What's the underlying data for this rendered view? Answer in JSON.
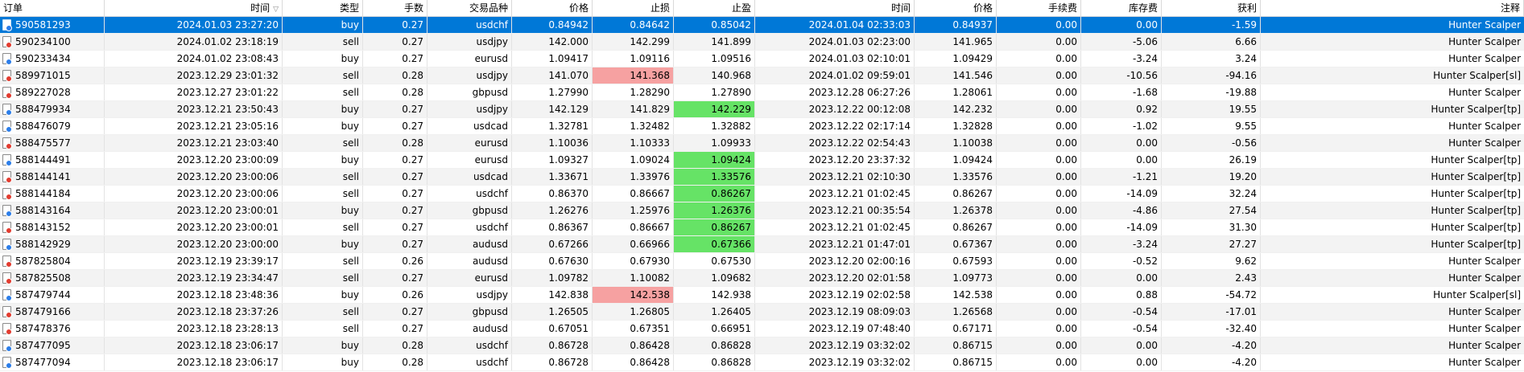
{
  "colors": {
    "selected_row": "#0078d7",
    "hit_tp": "#66e366",
    "hit_sl": "#f6a1a1",
    "buy_dot": "#2b7de9",
    "sell_dot": "#e23b2f"
  },
  "icons": {
    "order": "order-document-icon",
    "sort": "sort-desc-triangle-icon"
  },
  "table": {
    "sort_arrow": "▽",
    "columns": [
      "订单",
      "时间",
      "类型",
      "手数",
      "交易品种",
      "价格",
      "止损",
      "止盈",
      "时间",
      "价格",
      "手续费",
      "库存费",
      "获利",
      "注释"
    ],
    "rows": [
      {
        "order": "590581293",
        "open_time": "2024.01.03 23:27:20",
        "type": "buy",
        "lots": "0.27",
        "symbol": "usdchf",
        "price": "0.84942",
        "sl": "0.84642",
        "tp": "0.85042",
        "close_time": "2024.01.04 02:33:03",
        "close_price": "0.84937",
        "commission": "0.00",
        "swap": "0.00",
        "profit": "-1.59",
        "comment": "Hunter Scalper",
        "hl": "",
        "selected": true
      },
      {
        "order": "590234100",
        "open_time": "2024.01.02 23:18:19",
        "type": "sell",
        "lots": "0.27",
        "symbol": "usdjpy",
        "price": "142.000",
        "sl": "142.299",
        "tp": "141.899",
        "close_time": "2024.01.03 02:23:00",
        "close_price": "141.965",
        "commission": "0.00",
        "swap": "-5.06",
        "profit": "6.66",
        "comment": "Hunter Scalper",
        "hl": "",
        "selected": false
      },
      {
        "order": "590233434",
        "open_time": "2024.01.02 23:08:43",
        "type": "buy",
        "lots": "0.27",
        "symbol": "eurusd",
        "price": "1.09417",
        "sl": "1.09116",
        "tp": "1.09516",
        "close_time": "2024.01.03 02:10:01",
        "close_price": "1.09429",
        "commission": "0.00",
        "swap": "-3.24",
        "profit": "3.24",
        "comment": "Hunter Scalper",
        "hl": "",
        "selected": false
      },
      {
        "order": "589971015",
        "open_time": "2023.12.29 23:01:32",
        "type": "sell",
        "lots": "0.28",
        "symbol": "usdjpy",
        "price": "141.070",
        "sl": "141.368",
        "tp": "140.968",
        "close_time": "2024.01.02 09:59:01",
        "close_price": "141.546",
        "commission": "0.00",
        "swap": "-10.56",
        "profit": "-94.16",
        "comment": "Hunter Scalper[sl]",
        "hl": "sl",
        "selected": false
      },
      {
        "order": "589227028",
        "open_time": "2023.12.27 23:01:22",
        "type": "sell",
        "lots": "0.28",
        "symbol": "gbpusd",
        "price": "1.27990",
        "sl": "1.28290",
        "tp": "1.27890",
        "close_time": "2023.12.28 06:27:26",
        "close_price": "1.28061",
        "commission": "0.00",
        "swap": "-1.68",
        "profit": "-19.88",
        "comment": "Hunter Scalper",
        "hl": "",
        "selected": false
      },
      {
        "order": "588479934",
        "open_time": "2023.12.21 23:50:43",
        "type": "buy",
        "lots": "0.27",
        "symbol": "usdjpy",
        "price": "142.129",
        "sl": "141.829",
        "tp": "142.229",
        "close_time": "2023.12.22 00:12:08",
        "close_price": "142.232",
        "commission": "0.00",
        "swap": "0.92",
        "profit": "19.55",
        "comment": "Hunter Scalper[tp]",
        "hl": "tp",
        "selected": false
      },
      {
        "order": "588476079",
        "open_time": "2023.12.21 23:05:16",
        "type": "buy",
        "lots": "0.27",
        "symbol": "usdcad",
        "price": "1.32781",
        "sl": "1.32482",
        "tp": "1.32882",
        "close_time": "2023.12.22 02:17:14",
        "close_price": "1.32828",
        "commission": "0.00",
        "swap": "-1.02",
        "profit": "9.55",
        "comment": "Hunter Scalper",
        "hl": "",
        "selected": false
      },
      {
        "order": "588475577",
        "open_time": "2023.12.21 23:03:40",
        "type": "sell",
        "lots": "0.28",
        "symbol": "eurusd",
        "price": "1.10036",
        "sl": "1.10333",
        "tp": "1.09933",
        "close_time": "2023.12.22 02:54:43",
        "close_price": "1.10038",
        "commission": "0.00",
        "swap": "0.00",
        "profit": "-0.56",
        "comment": "Hunter Scalper",
        "hl": "",
        "selected": false
      },
      {
        "order": "588144491",
        "open_time": "2023.12.20 23:00:09",
        "type": "buy",
        "lots": "0.27",
        "symbol": "eurusd",
        "price": "1.09327",
        "sl": "1.09024",
        "tp": "1.09424",
        "close_time": "2023.12.20 23:37:32",
        "close_price": "1.09424",
        "commission": "0.00",
        "swap": "0.00",
        "profit": "26.19",
        "comment": "Hunter Scalper[tp]",
        "hl": "tp",
        "selected": false
      },
      {
        "order": "588144141",
        "open_time": "2023.12.20 23:00:06",
        "type": "sell",
        "lots": "0.27",
        "symbol": "usdcad",
        "price": "1.33671",
        "sl": "1.33976",
        "tp": "1.33576",
        "close_time": "2023.12.21 02:10:30",
        "close_price": "1.33576",
        "commission": "0.00",
        "swap": "-1.21",
        "profit": "19.20",
        "comment": "Hunter Scalper[tp]",
        "hl": "tp",
        "selected": false
      },
      {
        "order": "588144184",
        "open_time": "2023.12.20 23:00:06",
        "type": "sell",
        "lots": "0.27",
        "symbol": "usdchf",
        "price": "0.86370",
        "sl": "0.86667",
        "tp": "0.86267",
        "close_time": "2023.12.21 01:02:45",
        "close_price": "0.86267",
        "commission": "0.00",
        "swap": "-14.09",
        "profit": "32.24",
        "comment": "Hunter Scalper[tp]",
        "hl": "tp",
        "selected": false
      },
      {
        "order": "588143164",
        "open_time": "2023.12.20 23:00:01",
        "type": "buy",
        "lots": "0.27",
        "symbol": "gbpusd",
        "price": "1.26276",
        "sl": "1.25976",
        "tp": "1.26376",
        "close_time": "2023.12.21 00:35:54",
        "close_price": "1.26378",
        "commission": "0.00",
        "swap": "-4.86",
        "profit": "27.54",
        "comment": "Hunter Scalper[tp]",
        "hl": "tp",
        "selected": false
      },
      {
        "order": "588143152",
        "open_time": "2023.12.20 23:00:01",
        "type": "sell",
        "lots": "0.27",
        "symbol": "usdchf",
        "price": "0.86367",
        "sl": "0.86667",
        "tp": "0.86267",
        "close_time": "2023.12.21 01:02:45",
        "close_price": "0.86267",
        "commission": "0.00",
        "swap": "-14.09",
        "profit": "31.30",
        "comment": "Hunter Scalper[tp]",
        "hl": "tp",
        "selected": false
      },
      {
        "order": "588142929",
        "open_time": "2023.12.20 23:00:00",
        "type": "buy",
        "lots": "0.27",
        "symbol": "audusd",
        "price": "0.67266",
        "sl": "0.66966",
        "tp": "0.67366",
        "close_time": "2023.12.21 01:47:01",
        "close_price": "0.67367",
        "commission": "0.00",
        "swap": "-3.24",
        "profit": "27.27",
        "comment": "Hunter Scalper[tp]",
        "hl": "tp",
        "selected": false
      },
      {
        "order": "587825804",
        "open_time": "2023.12.19 23:39:17",
        "type": "sell",
        "lots": "0.26",
        "symbol": "audusd",
        "price": "0.67630",
        "sl": "0.67930",
        "tp": "0.67530",
        "close_time": "2023.12.20 02:00:16",
        "close_price": "0.67593",
        "commission": "0.00",
        "swap": "-0.52",
        "profit": "9.62",
        "comment": "Hunter Scalper",
        "hl": "",
        "selected": false
      },
      {
        "order": "587825508",
        "open_time": "2023.12.19 23:34:47",
        "type": "sell",
        "lots": "0.27",
        "symbol": "eurusd",
        "price": "1.09782",
        "sl": "1.10082",
        "tp": "1.09682",
        "close_time": "2023.12.20 02:01:58",
        "close_price": "1.09773",
        "commission": "0.00",
        "swap": "0.00",
        "profit": "2.43",
        "comment": "Hunter Scalper",
        "hl": "",
        "selected": false
      },
      {
        "order": "587479744",
        "open_time": "2023.12.18 23:48:36",
        "type": "buy",
        "lots": "0.26",
        "symbol": "usdjpy",
        "price": "142.838",
        "sl": "142.538",
        "tp": "142.938",
        "close_time": "2023.12.19 02:02:58",
        "close_price": "142.538",
        "commission": "0.00",
        "swap": "0.88",
        "profit": "-54.72",
        "comment": "Hunter Scalper[sl]",
        "hl": "sl",
        "selected": false
      },
      {
        "order": "587479166",
        "open_time": "2023.12.18 23:37:26",
        "type": "sell",
        "lots": "0.27",
        "symbol": "gbpusd",
        "price": "1.26505",
        "sl": "1.26805",
        "tp": "1.26405",
        "close_time": "2023.12.19 08:09:03",
        "close_price": "1.26568",
        "commission": "0.00",
        "swap": "-0.54",
        "profit": "-17.01",
        "comment": "Hunter Scalper",
        "hl": "",
        "selected": false
      },
      {
        "order": "587478376",
        "open_time": "2023.12.18 23:28:13",
        "type": "sell",
        "lots": "0.27",
        "symbol": "audusd",
        "price": "0.67051",
        "sl": "0.67351",
        "tp": "0.66951",
        "close_time": "2023.12.19 07:48:40",
        "close_price": "0.67171",
        "commission": "0.00",
        "swap": "-0.54",
        "profit": "-32.40",
        "comment": "Hunter Scalper",
        "hl": "",
        "selected": false
      },
      {
        "order": "587477095",
        "open_time": "2023.12.18 23:06:17",
        "type": "buy",
        "lots": "0.28",
        "symbol": "usdchf",
        "price": "0.86728",
        "sl": "0.86428",
        "tp": "0.86828",
        "close_time": "2023.12.19 03:32:02",
        "close_price": "0.86715",
        "commission": "0.00",
        "swap": "0.00",
        "profit": "-4.20",
        "comment": "Hunter Scalper",
        "hl": "",
        "selected": false
      },
      {
        "order": "587477094",
        "open_time": "2023.12.18 23:06:17",
        "type": "buy",
        "lots": "0.28",
        "symbol": "usdchf",
        "price": "0.86728",
        "sl": "0.86428",
        "tp": "0.86828",
        "close_time": "2023.12.19 03:32:02",
        "close_price": "0.86715",
        "commission": "0.00",
        "swap": "0.00",
        "profit": "-4.20",
        "comment": "Hunter Scalper",
        "hl": "",
        "selected": false
      }
    ]
  }
}
